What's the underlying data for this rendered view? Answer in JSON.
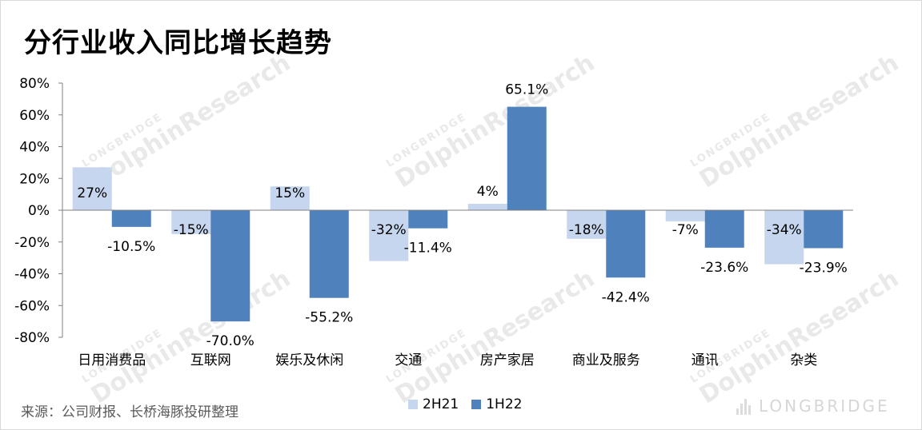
{
  "title": "分行业收入同比增长趋势",
  "source": "来源：公司财报、长桥海豚投研整理",
  "watermark": {
    "main": "DolphinResearch",
    "small": "LONGBRIDGE"
  },
  "brand": "LONGBRIDGE",
  "colors": {
    "series1": "#c5d6ee",
    "series2": "#4f81bd",
    "axis": "#808080"
  },
  "chart_data": {
    "type": "bar",
    "title": "分行业收入同比增长趋势",
    "categories": [
      "日用消费品",
      "互联网",
      "娱乐及休闲",
      "交通",
      "房产家居",
      "商业及服务",
      "通讯",
      "杂类"
    ],
    "series": [
      {
        "name": "2H21",
        "values": [
          27,
          -15,
          15,
          -32,
          4,
          -18,
          -7,
          -34
        ],
        "labels": [
          "27%",
          "-15%",
          "15%",
          "-32%",
          "4%",
          "-18%",
          "-7%",
          "-34%"
        ]
      },
      {
        "name": "1H22",
        "values": [
          -10.5,
          -70.0,
          -55.2,
          -11.4,
          65.1,
          -42.4,
          -23.6,
          -23.9
        ],
        "labels": [
          "-10.5%",
          "-70.0%",
          "-55.2%",
          "-11.4%",
          "65.1%",
          "-42.4%",
          "-23.6%",
          "-23.9%"
        ]
      }
    ],
    "yticks": [
      "80%",
      "60%",
      "40%",
      "20%",
      "0%",
      "-20%",
      "-40%",
      "-60%",
      "-80%"
    ],
    "ylim": [
      -80,
      80
    ],
    "legend": "bottom-center",
    "grid": false
  }
}
